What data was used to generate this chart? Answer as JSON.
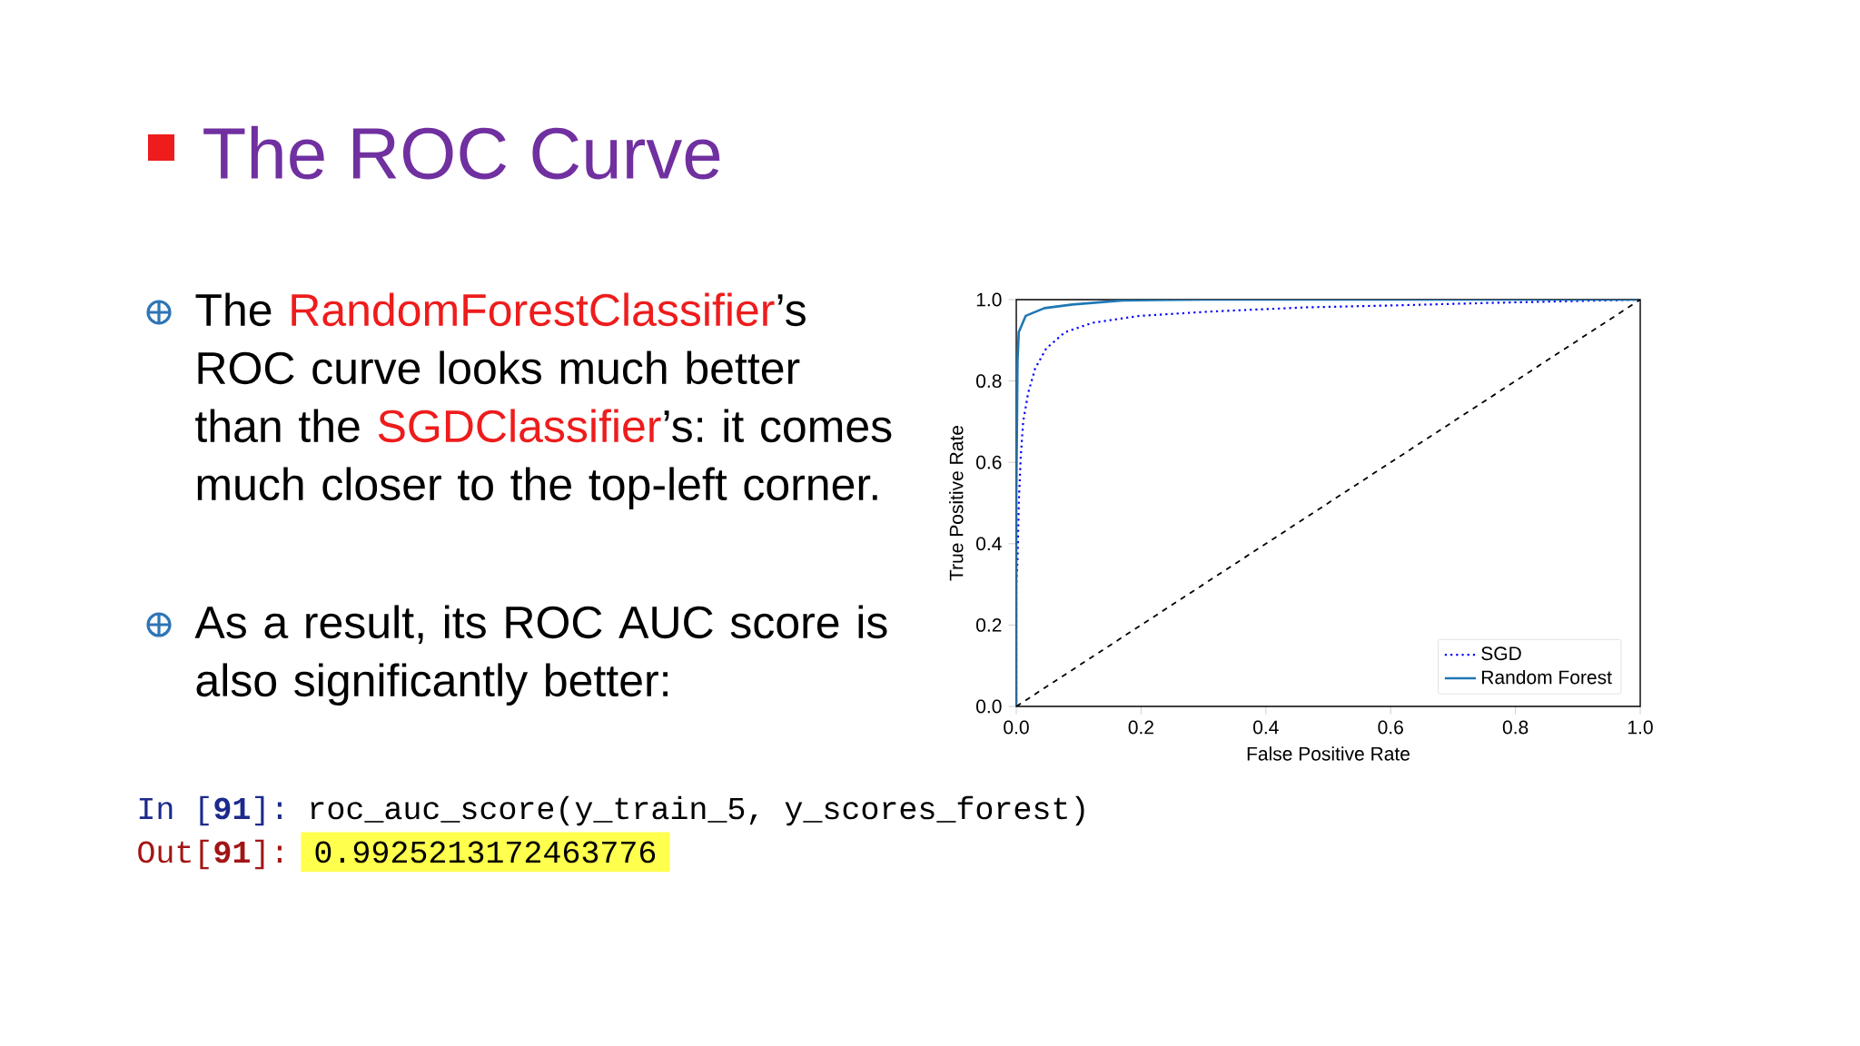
{
  "chart_data": {
    "type": "line",
    "title": "The ROC Curve",
    "xlabel": "False Positive Rate",
    "ylabel": "True Positive Rate",
    "xlim": [
      0,
      1
    ],
    "ylim": [
      0,
      1
    ],
    "xticks": [
      {
        "value": 0,
        "label": "0.0"
      },
      0.2,
      0.4,
      0.6,
      0.8,
      {
        "value": 1,
        "label": "1.0"
      }
    ],
    "yticks": [
      {
        "value": 0,
        "label": "0.0"
      },
      0.2,
      0.4,
      0.6,
      0.8,
      {
        "value": 1,
        "label": "1.0"
      }
    ],
    "legend": "bottom right",
    "grid": false,
    "series": [
      {
        "name": "SGD",
        "color": "#0000ff",
        "line_style": "dotted",
        "x": [
          0,
          0,
          0.002,
          0.004,
          0.007,
          0.011,
          0.019,
          0.03,
          0.048,
          0.078,
          0.122,
          0.197,
          0.315,
          0.464,
          0.612,
          0.76,
          1
        ],
        "values": [
          0,
          0.3,
          0.36,
          0.5,
          0.61,
          0.7,
          0.77,
          0.83,
          0.88,
          0.92,
          0.943,
          0.96,
          0.971,
          0.981,
          0.986,
          0.992,
          1
        ]
      },
      {
        "name": "Random Forest",
        "color": "#1f77b4",
        "line_style": "solid",
        "x": [
          0,
          0,
          0.002,
          0.004,
          0.015,
          0.045,
          0.09,
          0.17,
          0.3,
          1
        ],
        "values": [
          0,
          0.5,
          0.85,
          0.92,
          0.96,
          0.979,
          0.988,
          0.998,
          1,
          1
        ]
      },
      {
        "color": "#000000",
        "line_style": "dashed",
        "x": [
          0,
          1
        ],
        "values": [
          0,
          1
        ]
      }
    ],
    "annotations": [
      "The ",
      "RandomForestClassifier",
      "’s ROC curve looks much better than the ",
      "SGDClassifier",
      "’s: it comes much closer to the top-left corner.",
      "As a result, its ROC AUC score is also significantly better:",
      "In [**91**]:",
      "roc_auc_score(y_train_5, y_scores_forest)",
      "Out[**91**]:",
      "0.9925213172463776"
    ]
  }
}
